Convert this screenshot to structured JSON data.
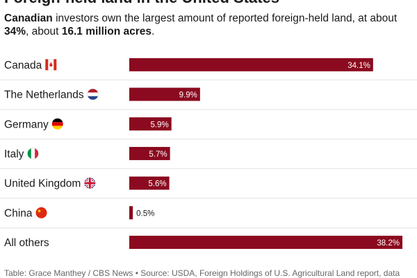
{
  "header": {
    "title": "Foreign-held land in the United States",
    "subtitle": {
      "bold1": "Canadian",
      "text1": " investors own the largest amount of reported foreign-held land, at about ",
      "bold2": "34%",
      "text2": ", about ",
      "bold3": "16.1 million acres",
      "text3": "."
    }
  },
  "chart_data": {
    "type": "bar",
    "orientation": "horizontal",
    "categories": [
      "Canada",
      "The Netherlands",
      "Germany",
      "Italy",
      "United Kingdom",
      "China",
      "All others"
    ],
    "values": [
      34.1,
      9.9,
      5.9,
      5.7,
      5.6,
      0.5,
      38.2
    ],
    "value_labels": [
      "34.1%",
      "9.9%",
      "5.9%",
      "5.7%",
      "5.6%",
      "0.5%",
      "38.2%"
    ],
    "flags": [
      "canada-flag",
      "netherlands-flag",
      "germany-flag",
      "italy-flag",
      "united-kingdom-flag",
      "china-flag",
      null
    ],
    "xlim": [
      0,
      38.2
    ],
    "bar_color": "#8b0a1f",
    "grid": false
  },
  "footer": {
    "source": "Table: Grace Manthey / CBS News • Source: USDA, Foreign Holdings of U.S. Agricultural Land report, data"
  }
}
